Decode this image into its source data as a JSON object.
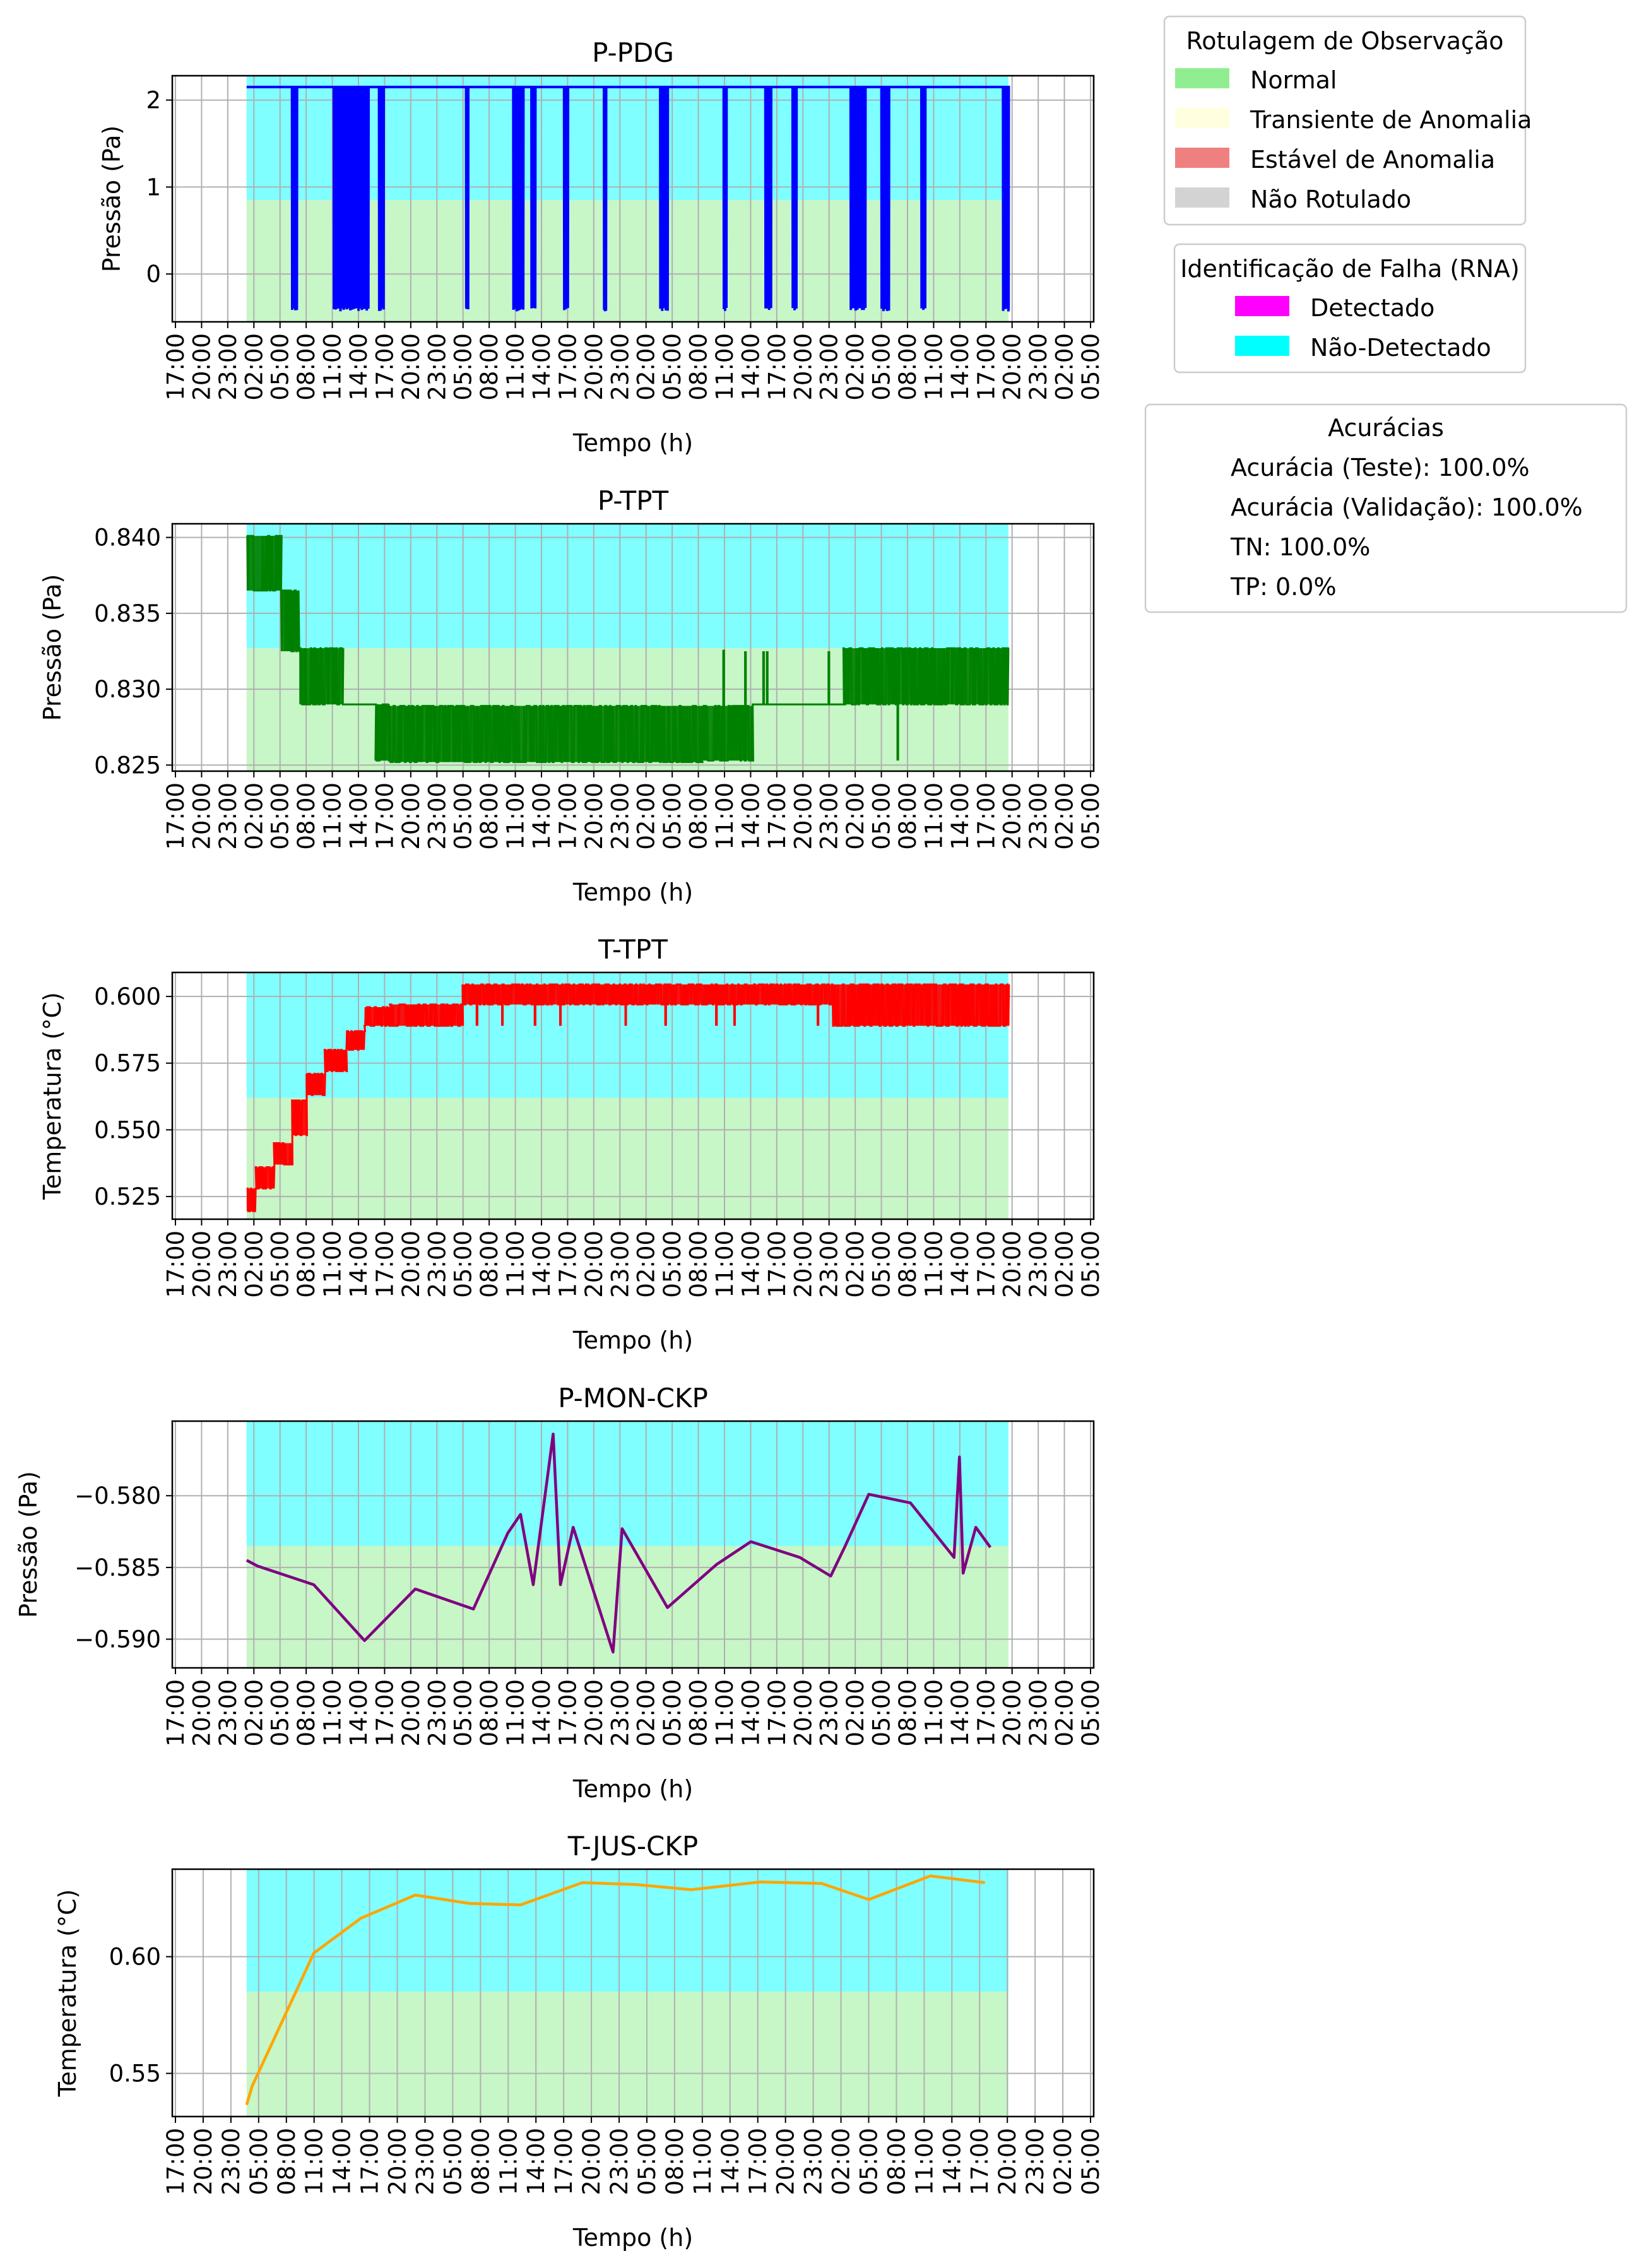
{
  "tick_labels": [
    "17:00",
    "20:00",
    "23:00",
    "02:00",
    "05:00",
    "08:00",
    "11:00",
    "14:00",
    "17:00",
    "20:00",
    "23:00",
    "05:00",
    "08:00",
    "11:00",
    "14:00",
    "17:00",
    "20:00",
    "23:00",
    "02:00",
    "05:00",
    "08:00",
    "11:00",
    "14:00",
    "17:00",
    "20:00",
    "23:00",
    "02:00",
    "05:00",
    "08:00",
    "11:00",
    "14:00",
    "17:00",
    "20:00",
    "23:00",
    "02:00",
    "05:00"
  ],
  "tick_labels_all": {
    "p_pdg": [
      "17:00",
      "20:00",
      "23:00",
      "02:00",
      "05:00",
      "08:00",
      "11:00",
      "14:00",
      "17:00",
      "20:00",
      "23:00",
      "05:00",
      "08:00",
      "11:00",
      "14:00",
      "17:00",
      "20:00",
      "23:00",
      "02:00",
      "05:00",
      "08:00",
      "11:00",
      "14:00",
      "17:00",
      "20:00",
      "23:00",
      "02:00",
      "05:00",
      "08:00",
      "11:00",
      "14:00",
      "17:00",
      "20:00",
      "23:00",
      "02:00",
      "05:00"
    ],
    "p_tpt": [
      "17:00",
      "20:00",
      "23:00",
      "02:00",
      "05:00",
      "08:00",
      "11:00",
      "14:00",
      "17:00",
      "20:00",
      "23:00",
      "05:00",
      "08:00",
      "11:00",
      "14:00",
      "17:00",
      "20:00",
      "23:00",
      "02:00",
      "05:00",
      "08:00",
      "11:00",
      "14:00",
      "17:00",
      "20:00",
      "23:00",
      "02:00",
      "05:00",
      "08:00",
      "11:00",
      "14:00",
      "17:00",
      "20:00",
      "23:00",
      "02:00",
      "05:00"
    ],
    "t_tpt": [
      "17:00",
      "20:00",
      "23:00",
      "02:00",
      "05:00",
      "08:00",
      "11:00",
      "14:00",
      "17:00",
      "20:00",
      "23:00",
      "05:00",
      "08:00",
      "11:00",
      "14:00",
      "17:00",
      "20:00",
      "23:00",
      "02:00",
      "05:00",
      "08:00",
      "11:00",
      "14:00",
      "17:00",
      "20:00",
      "23:00",
      "02:00",
      "05:00",
      "08:00",
      "11:00",
      "14:00",
      "17:00",
      "20:00",
      "23:00",
      "02:00",
      "05:00"
    ],
    "p_mon": [
      "17:00",
      "20:00",
      "23:00",
      "02:00",
      "05:00",
      "08:00",
      "11:00",
      "14:00",
      "17:00",
      "20:00",
      "23:00",
      "05:00",
      "08:00",
      "11:00",
      "14:00",
      "17:00",
      "20:00",
      "23:00",
      "02:00",
      "05:00",
      "08:00",
      "11:00",
      "14:00",
      "17:00",
      "20:00",
      "23:00",
      "02:00",
      "05:00",
      "08:00",
      "11:00",
      "14:00",
      "17:00",
      "20:00",
      "23:00",
      "02:00",
      "05:00"
    ],
    "t_jus": [
      "17:00",
      "20:00",
      "23:00",
      "05:00",
      "08:00",
      "11:00",
      "14:00",
      "17:00",
      "20:00",
      "23:00",
      "05:00",
      "08:00",
      "11:00",
      "14:00",
      "17:00",
      "20:00",
      "23:00",
      "05:00",
      "08:00",
      "11:00",
      "14:00",
      "17:00",
      "20:00",
      "23:00",
      "02:00",
      "05:00",
      "08:00",
      "11:00",
      "14:00",
      "17:00",
      "20:00",
      "23:00",
      "02:00",
      "05:00"
    ]
  },
  "xlabel": "Tempo (h)",
  "colors": {
    "normal": "#90ee90",
    "transiente": "#ffffe0",
    "estavel": "#f08080",
    "nao_rotulado": "#d3d3d3",
    "detectado": "#ff00ff",
    "nao_detectado": "#00ffff",
    "grid": "#b0b0b0"
  },
  "legend_observacao": {
    "title": "Rotulagem de Observação",
    "items": [
      {
        "label": "Normal",
        "color": "#90ee90"
      },
      {
        "label": "Transiente de Anomalia",
        "color": "#ffffe0"
      },
      {
        "label": "Estável de Anomalia",
        "color": "#f08080"
      },
      {
        "label": "Não Rotulado",
        "color": "#d3d3d3"
      }
    ]
  },
  "legend_falha": {
    "title": "Identificação de Falha (RNA)",
    "items": [
      {
        "label": "Detectado",
        "color": "#ff00ff"
      },
      {
        "label": "Não-Detectado",
        "color": "#00ffff"
      }
    ]
  },
  "legend_acuracias": {
    "title": "Acurácias",
    "lines": [
      "Acurácia (Teste): 100.0%",
      "Acurácia (Validação): 100.0%",
      "TN: 100.0%",
      "TP: 0.0%"
    ]
  },
  "chart_data": [
    {
      "type": "line",
      "title": "P-PDG",
      "ylabel": "Pressão (Pa)",
      "xlabel": "Tempo (h)",
      "color": "#0000ff",
      "ylim": [
        -0.55,
        2.28
      ],
      "yticks": [
        0,
        1,
        2
      ],
      "ytick_labels": [
        "0",
        "1",
        "2"
      ],
      "band_split": 0.85,
      "data_range": [
        20.5,
        230.5
      ],
      "series": {
        "name": "",
        "style": "pdg",
        "baseline": 2.15,
        "low": -0.43,
        "dips": [
          [
            33,
            34.3
          ],
          [
            44.5,
            54
          ],
          [
            57,
            58.2
          ],
          [
            81,
            81.5
          ],
          [
            94,
            96.7
          ],
          [
            99,
            100
          ],
          [
            108,
            109
          ],
          [
            119,
            119.5
          ],
          [
            134.5,
            136.5
          ],
          [
            152,
            152.7
          ],
          [
            163.5,
            165
          ],
          [
            171,
            172
          ],
          [
            187,
            191
          ],
          [
            195.5,
            197.5
          ],
          [
            206.5,
            207.5
          ],
          [
            229,
            230.5
          ]
        ]
      }
    },
    {
      "type": "line",
      "title": "P-TPT",
      "ylabel": "Pressão (Pa)",
      "xlabel": "Tempo (h)",
      "color": "#008000",
      "ylim": [
        0.8246,
        0.8409
      ],
      "yticks": [
        0.825,
        0.83,
        0.835,
        0.84
      ],
      "ytick_labels": [
        "0.825",
        "0.830",
        "0.835",
        "0.840"
      ],
      "band_split": 0.8327,
      "data_range": [
        20.5,
        230.5
      ],
      "series": {
        "name": "",
        "style": "steps",
        "segments": [
          [
            20.5,
            30,
            0.8365,
            0.8401
          ],
          [
            30,
            35,
            0.8325,
            0.8365
          ],
          [
            35,
            47,
            0.829,
            0.8327
          ],
          [
            47,
            56,
            0.829,
            0.829
          ],
          [
            56,
            60,
            0.8253,
            0.829
          ],
          [
            60,
            146,
            0.8252,
            0.8289
          ],
          [
            146,
            160,
            0.8253,
            0.8289
          ],
          [
            160,
            185,
            0.829,
            0.829
          ],
          [
            185,
            230.5,
            0.829,
            0.8327
          ]
        ],
        "spikes": [
          [
            152,
            0.8326
          ],
          [
            158,
            0.8325
          ],
          [
            163,
            0.8325
          ],
          [
            164,
            0.8325
          ],
          [
            181,
            0.8325
          ],
          [
            200,
            0.8253
          ],
          [
            208,
            0.8325
          ],
          [
            215,
            0.8318
          ],
          [
            218,
            0.8325
          ],
          [
            221,
            0.8326
          ],
          [
            226,
            0.8326
          ]
        ]
      }
    },
    {
      "type": "line",
      "title": "T-TPT",
      "ylabel": "Temperatura (°C)",
      "xlabel": "Tempo (h)",
      "color": "#ff0000",
      "ylim": [
        0.5165,
        0.609
      ],
      "yticks": [
        0.525,
        0.55,
        0.575,
        0.6
      ],
      "ytick_labels": [
        "0.525",
        "0.550",
        "0.575",
        "0.600"
      ],
      "band_split": 0.562,
      "data_range": [
        20.5,
        230.5
      ],
      "series": {
        "name": "",
        "style": "steps",
        "segments": [
          [
            20.5,
            23,
            0.5195,
            0.528
          ],
          [
            23,
            28,
            0.528,
            0.536
          ],
          [
            28,
            33,
            0.537,
            0.545
          ],
          [
            33,
            37,
            0.548,
            0.561
          ],
          [
            37,
            42,
            0.563,
            0.571
          ],
          [
            42,
            48,
            0.572,
            0.58
          ],
          [
            48,
            53,
            0.58,
            0.587
          ],
          [
            53,
            60,
            0.589,
            0.596
          ],
          [
            60,
            80,
            0.589,
            0.597
          ],
          [
            80,
            168,
            0.597,
            0.6045
          ],
          [
            168,
            182,
            0.597,
            0.6045
          ],
          [
            182,
            230.5,
            0.589,
            0.6045
          ]
        ],
        "spikes": [
          [
            84,
            0.589
          ],
          [
            91,
            0.589
          ],
          [
            100,
            0.589
          ],
          [
            107,
            0.589
          ],
          [
            125,
            0.589
          ],
          [
            136,
            0.589
          ],
          [
            150,
            0.589
          ],
          [
            155,
            0.589
          ],
          [
            178,
            0.589
          ]
        ]
      }
    },
    {
      "type": "line",
      "title": "P-MON-CKP",
      "ylabel": "Pressão (Pa)",
      "xlabel": "Tempo (h)",
      "color": "#800080",
      "ylim": [
        -0.592,
        -0.5748
      ],
      "yticks": [
        -0.59,
        -0.585,
        -0.58
      ],
      "ytick_labels": [
        "−0.590",
        "−0.585",
        "−0.580"
      ],
      "band_split": -0.5835,
      "data_range": [
        20.5,
        230.5
      ],
      "series": {
        "name": "",
        "x": [
          20.5,
          23.5,
          39,
          53,
          67,
          83,
          92.5,
          96,
          99.5,
          105,
          107,
          110.5,
          121.5,
          124,
          136.5,
          150,
          159.5,
          173,
          181.5,
          185.5,
          192,
          203.5,
          215.5,
          217,
          218,
          221.5,
          225.5
        ],
        "y": [
          -0.5845,
          -0.5849,
          -0.5862,
          -0.5901,
          -0.5865,
          -0.5879,
          -0.5826,
          -0.5813,
          -0.5862,
          -0.5757,
          -0.5862,
          -0.5822,
          -0.5909,
          -0.5823,
          -0.5878,
          -0.5848,
          -0.5832,
          -0.5843,
          -0.5856,
          -0.5835,
          -0.5799,
          -0.5805,
          -0.5843,
          -0.5773,
          -0.5854,
          -0.5822,
          -0.5836
        ]
      }
    },
    {
      "type": "line",
      "title": "T-JUS-CKP",
      "ylabel": "Temperatura (°C)",
      "xlabel": "Tempo (h)",
      "color": "#ffa500",
      "ylim": [
        0.5315,
        0.6375
      ],
      "yticks": [
        0.55,
        0.6
      ],
      "ytick_labels": [
        "0.55",
        "0.60"
      ],
      "band_split": 0.585,
      "data_range": [
        20.5,
        230.5
      ],
      "series": {
        "name": "",
        "x": [
          20.5,
          22,
          39,
          52,
          67,
          82,
          96,
          113,
          128,
          143,
          162,
          179,
          192,
          209,
          224
        ],
        "y": [
          0.5365,
          0.5445,
          0.6015,
          0.6165,
          0.6264,
          0.6228,
          0.6222,
          0.6317,
          0.6309,
          0.6287,
          0.632,
          0.6314,
          0.6245,
          0.6346,
          0.6317
        ]
      }
    }
  ]
}
